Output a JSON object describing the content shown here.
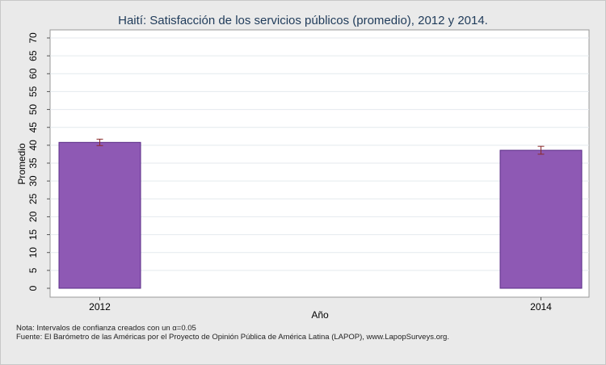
{
  "chart_data": {
    "type": "bar",
    "title": "Haití: Satisfacción de los servicios públicos (promedio), 2012 y 2014.",
    "xlabel": "Año",
    "ylabel": "Promedio",
    "categories": [
      "2012",
      "2014"
    ],
    "values": [
      40.8,
      38.6
    ],
    "ci_low": [
      39.9,
      37.5
    ],
    "ci_high": [
      41.7,
      39.7
    ],
    "ylim": [
      0,
      70
    ],
    "yticks": [
      0,
      5,
      10,
      15,
      20,
      25,
      30,
      35,
      40,
      45,
      50,
      55,
      60,
      65,
      70
    ],
    "grid": true,
    "bar_color": "#8e59b4",
    "bar_edge_color": "#5b2d87",
    "errorbar_color": "#8b2a2a"
  },
  "notes": {
    "line1": "Nota: Intervalos de confianza creados con un α=0.05",
    "line2": "Fuente: El Barómetro de las Américas por el Proyecto de Opinión Pública de América Latina (LAPOP), www.LapopSurveys.org."
  }
}
